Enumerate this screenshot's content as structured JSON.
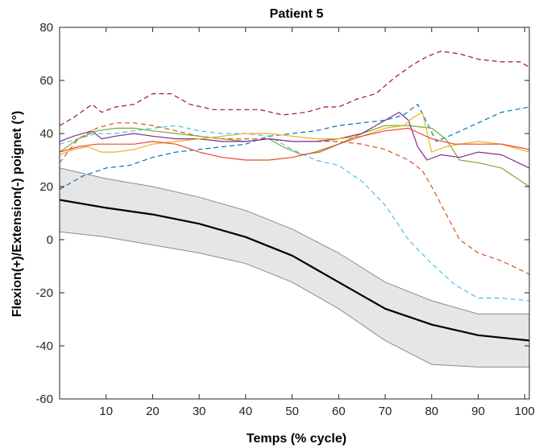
{
  "chart_data": {
    "type": "line",
    "title": "Patient 5",
    "xlabel": "Temps (% cycle)",
    "ylabel": "Flexion(+)/Extension(-) poignet (°)",
    "xlim": [
      0,
      101
    ],
    "ylim": [
      -60,
      80
    ],
    "xticks": [
      10,
      20,
      30,
      40,
      50,
      60,
      70,
      80,
      90,
      100
    ],
    "yticks": [
      -60,
      -40,
      -20,
      0,
      20,
      40,
      60,
      80
    ],
    "grid": false,
    "legend": "none",
    "colors": {
      "axis": "#262626",
      "band_fill": "#e6e6e6",
      "band_edge": "#8c8c8c",
      "mean": "#000000"
    },
    "reference": {
      "x": [
        0,
        10,
        20,
        30,
        40,
        50,
        60,
        70,
        80,
        90,
        101
      ],
      "mean": [
        15,
        12,
        9.5,
        6,
        1,
        -6,
        -16,
        -26,
        -32,
        -36,
        -38
      ],
      "upper": [
        27,
        23,
        20,
        16,
        11,
        4,
        -5,
        -16,
        -23,
        -28,
        -28
      ],
      "lower": [
        3,
        1,
        -2,
        -5,
        -9,
        -16,
        -26,
        -38,
        -47,
        -48,
        -48
      ]
    },
    "series": [
      {
        "color": "#a2142f",
        "dash": true,
        "x": [
          0,
          3,
          7,
          9,
          12,
          16,
          20,
          24,
          28,
          33,
          38,
          43,
          48,
          53,
          57,
          60,
          64,
          68,
          72,
          76,
          79,
          82,
          86,
          90,
          95,
          99,
          101
        ],
        "y": [
          43,
          46,
          51,
          48,
          50,
          51,
          55,
          55,
          51,
          49,
          49,
          49,
          47,
          48,
          50,
          50,
          53,
          55,
          61,
          66,
          69,
          71,
          70,
          68,
          67,
          67,
          65
        ]
      },
      {
        "color": "#0072bd",
        "dash": true,
        "x": [
          0,
          5,
          10,
          15,
          20,
          25,
          30,
          35,
          40,
          45,
          50,
          55,
          60,
          65,
          70,
          74,
          77,
          79,
          81,
          85,
          90,
          95,
          101
        ],
        "y": [
          19,
          24,
          27,
          28,
          31,
          33,
          34,
          35,
          36,
          39,
          40,
          41,
          43,
          44,
          45,
          47,
          51,
          44,
          37,
          40,
          44,
          48,
          50
        ]
      },
      {
        "color": "#4dbeee",
        "dash": true,
        "x": [
          0,
          4,
          8,
          12,
          16,
          20,
          25,
          30,
          35,
          40,
          45,
          50,
          55,
          60,
          65,
          70,
          75,
          80,
          85,
          90,
          95,
          101
        ],
        "y": [
          36,
          38,
          40,
          40,
          41,
          42,
          43,
          41,
          40,
          40,
          39,
          34,
          30,
          28,
          22,
          13,
          0,
          -9,
          -17,
          -22,
          -22,
          -23
        ]
      },
      {
        "color": "#d95319",
        "dash": true,
        "x": [
          0,
          4,
          8,
          12,
          16,
          20,
          25,
          30,
          35,
          40,
          45,
          50,
          55,
          60,
          65,
          70,
          75,
          78,
          80,
          83,
          86,
          90,
          95,
          101
        ],
        "y": [
          29,
          38,
          42,
          44,
          44,
          43,
          41,
          39,
          38,
          38,
          38,
          37,
          37,
          37,
          36,
          34,
          30,
          26,
          20,
          10,
          0,
          -5,
          -8,
          -13
        ]
      },
      {
        "color": "#77ac30",
        "dash": false,
        "x": [
          0,
          4,
          8,
          12,
          16,
          20,
          25,
          30,
          35,
          40,
          45,
          48,
          52,
          56,
          60,
          65,
          70,
          75,
          80,
          83,
          86,
          90,
          95,
          101
        ],
        "y": [
          33,
          38,
          41,
          42,
          42,
          41,
          40,
          39,
          38,
          37,
          38,
          35,
          32,
          33,
          36,
          40,
          43,
          43,
          42,
          38,
          30,
          29,
          27,
          20
        ]
      },
      {
        "color": "#7e2f8e",
        "dash": false,
        "x": [
          0,
          3,
          7,
          9,
          12,
          16,
          20,
          25,
          30,
          35,
          40,
          45,
          50,
          55,
          60,
          65,
          70,
          73,
          75,
          77,
          79,
          82,
          86,
          90,
          95,
          101
        ],
        "y": [
          37,
          39,
          41,
          38,
          39,
          40,
          39,
          38,
          38,
          37,
          37,
          38,
          37,
          37,
          38,
          40,
          45,
          48,
          45,
          35,
          30,
          32,
          31,
          33,
          32,
          27
        ]
      },
      {
        "color": "#edb120",
        "dash": false,
        "x": [
          0,
          3,
          6,
          9,
          12,
          16,
          20,
          25,
          30,
          35,
          40,
          45,
          50,
          55,
          60,
          65,
          70,
          74,
          76,
          78,
          80,
          83,
          86,
          90,
          95,
          101
        ],
        "y": [
          32,
          34,
          35,
          33,
          33,
          34,
          36,
          37,
          38,
          39,
          40,
          40,
          39,
          38,
          38,
          39,
          42,
          43,
          46,
          48,
          33,
          35,
          36,
          37,
          36,
          33
        ]
      },
      {
        "color": "#e8492b",
        "dash": false,
        "x": [
          0,
          4,
          8,
          12,
          16,
          20,
          25,
          30,
          35,
          40,
          45,
          50,
          55,
          60,
          65,
          70,
          75,
          80,
          85,
          90,
          95,
          101
        ],
        "y": [
          33,
          35,
          36,
          36,
          36,
          37,
          36,
          33,
          31,
          30,
          30,
          31,
          33,
          36,
          39,
          41,
          42,
          38,
          36,
          36,
          36,
          34
        ]
      }
    ]
  }
}
